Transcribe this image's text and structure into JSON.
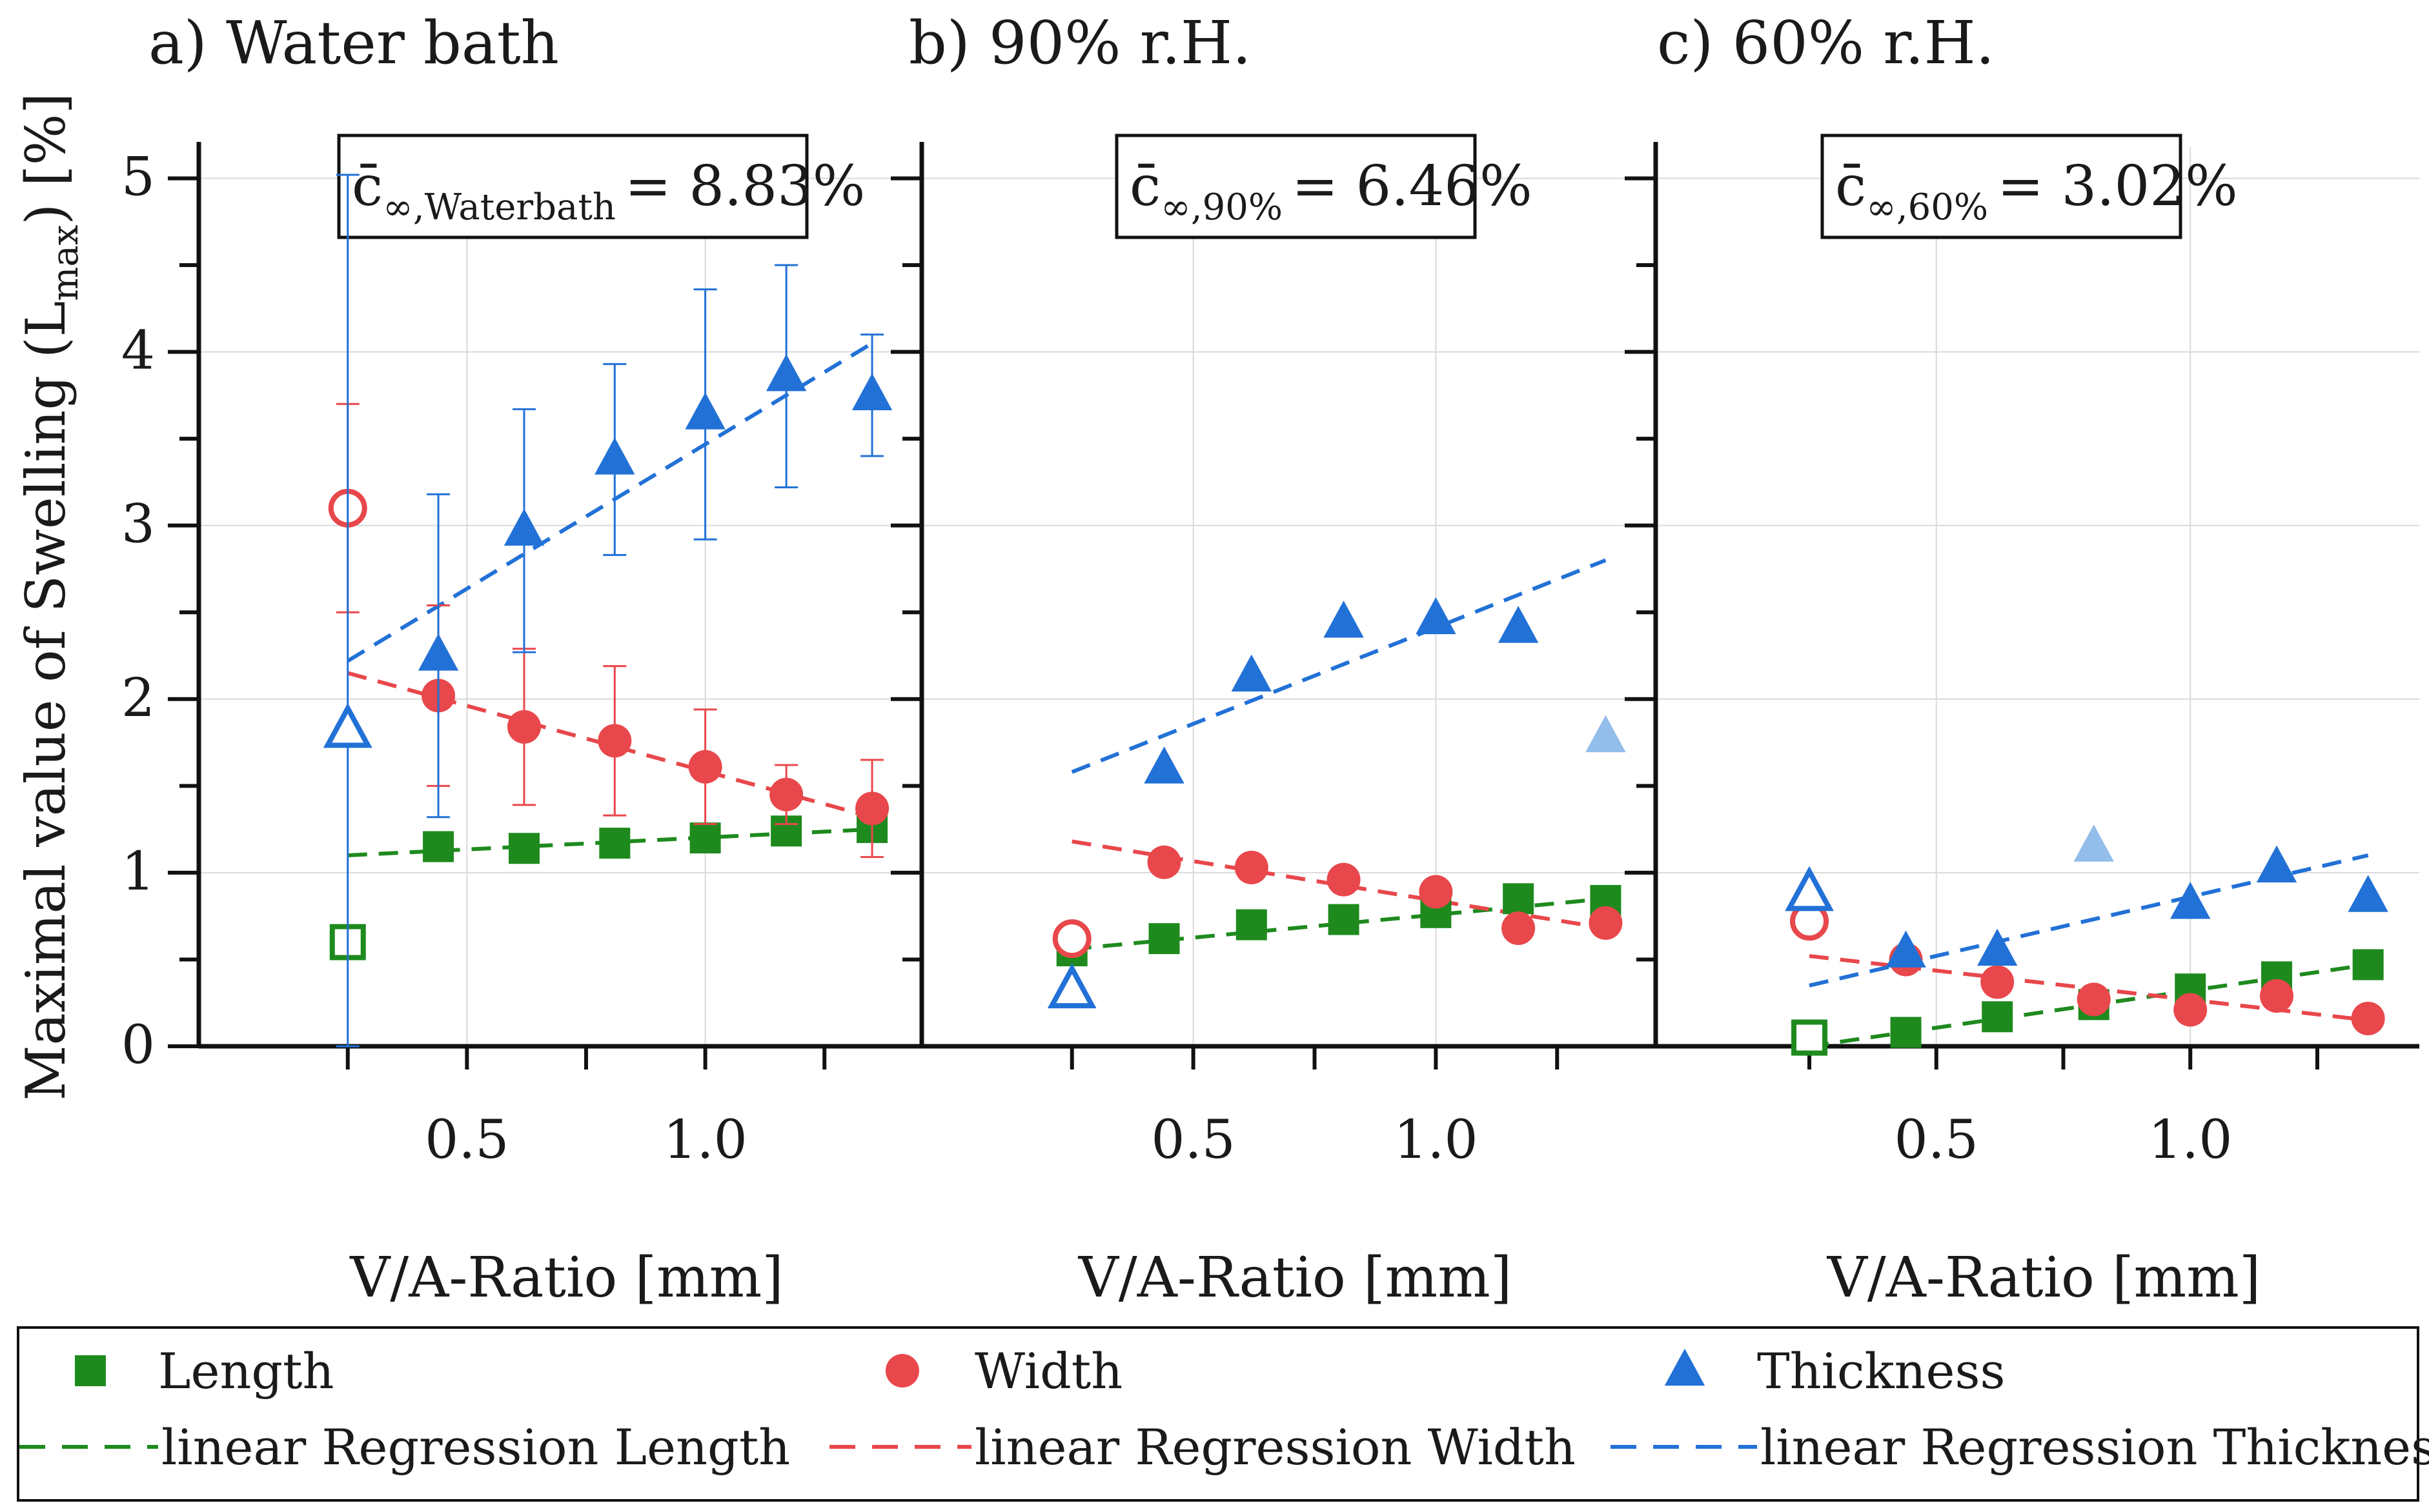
{
  "chart_data": [
    {
      "type": "scatter",
      "title": "a) Water bath",
      "annotation": {
        "symbol": "c̄",
        "subscript": "∞,Waterbath",
        "value": "= 8.83%"
      },
      "xlabel": "V/A-Ratio [mm]",
      "ylabel": "Maximal value of Swelling (L",
      "ylabel_sub": "max",
      "ylabel_end": ") [%]",
      "ylim": [
        0,
        5
      ],
      "yticks": [
        "0",
        "1",
        "2",
        "3",
        "4",
        "5"
      ],
      "xticks": [
        {
          "value": 0.5,
          "label": "0.5"
        },
        {
          "value": 1.0,
          "label": "1.0"
        }
      ],
      "xlim": [
        0.1,
        1.4
      ],
      "series": [
        {
          "name": "Length",
          "x": [
            0.25,
            0.44,
            0.62,
            0.81,
            1.0,
            1.17,
            1.35
          ],
          "y": [
            0.6,
            1.15,
            1.14,
            1.17,
            1.2,
            1.24,
            1.26
          ],
          "hollow": [
            true,
            false,
            false,
            false,
            false,
            false,
            false
          ],
          "err": [
            0,
            0,
            0,
            0,
            0,
            0,
            0
          ]
        },
        {
          "name": "Width",
          "x": [
            0.25,
            0.44,
            0.62,
            0.81,
            1.0,
            1.17,
            1.35
          ],
          "y": [
            3.1,
            2.02,
            1.84,
            1.76,
            1.61,
            1.45,
            1.37
          ],
          "hollow": [
            true,
            false,
            false,
            false,
            false,
            false,
            false
          ],
          "err": [
            0.6,
            0.52,
            0.45,
            0.43,
            0.33,
            0.17,
            0.28
          ]
        },
        {
          "name": "Thickness",
          "x": [
            0.25,
            0.44,
            0.62,
            0.81,
            1.0,
            1.17,
            1.35
          ],
          "y": [
            1.82,
            2.25,
            2.97,
            3.38,
            3.64,
            3.86,
            3.75
          ],
          "hollow": [
            true,
            false,
            false,
            false,
            false,
            false,
            false
          ],
          "err": [
            3.2,
            0.93,
            0.7,
            0.55,
            0.72,
            0.64,
            0.35
          ]
        }
      ],
      "regression": [
        {
          "name": "linear Regression Length",
          "x": [
            0.25,
            1.35
          ],
          "y": [
            1.1,
            1.25
          ]
        },
        {
          "name": "linear Regression Width",
          "x": [
            0.25,
            1.35
          ],
          "y": [
            2.15,
            1.32
          ]
        },
        {
          "name": "linear Regression Thickness",
          "x": [
            0.25,
            1.35
          ],
          "y": [
            2.22,
            4.05
          ]
        }
      ]
    },
    {
      "type": "scatter",
      "title": "b) 90% r.H.",
      "annotation": {
        "symbol": "c̄",
        "subscript": "∞,90%",
        "value": "= 6.46%"
      },
      "xlabel": "V/A-Ratio [mm]",
      "ylim": [
        0,
        5
      ],
      "xticks": [
        {
          "value": 0.5,
          "label": "0.5"
        },
        {
          "value": 1.0,
          "label": "1.0"
        }
      ],
      "xlim": [
        0.1,
        1.4
      ],
      "series": [
        {
          "name": "Length",
          "x": [
            0.25,
            0.44,
            0.62,
            0.81,
            1.0,
            1.17,
            1.35
          ],
          "y": [
            0.55,
            0.62,
            0.7,
            0.73,
            0.77,
            0.85,
            0.84
          ],
          "hollow": [
            false,
            false,
            false,
            false,
            false,
            false,
            false
          ]
        },
        {
          "name": "Width",
          "x": [
            0.25,
            0.44,
            0.62,
            0.81,
            1.0,
            1.17,
            1.35
          ],
          "y": [
            0.62,
            1.06,
            1.03,
            0.96,
            0.89,
            0.68,
            0.71
          ],
          "hollow": [
            true,
            false,
            false,
            false,
            false,
            false,
            false
          ]
        },
        {
          "name": "Thickness",
          "x": [
            0.25,
            0.44,
            0.62,
            0.81,
            1.0,
            1.17,
            1.35
          ],
          "y": [
            0.32,
            1.6,
            2.13,
            2.44,
            2.46,
            2.41,
            1.78
          ],
          "hollow": [
            true,
            false,
            false,
            false,
            false,
            false,
            false
          ],
          "faded": [
            false,
            false,
            false,
            false,
            false,
            false,
            true
          ]
        }
      ],
      "regression": [
        {
          "name": "linear Regression Length",
          "x": [
            0.25,
            1.35
          ],
          "y": [
            0.56,
            0.85
          ]
        },
        {
          "name": "linear Regression Width",
          "x": [
            0.25,
            1.35
          ],
          "y": [
            1.18,
            0.68
          ]
        },
        {
          "name": "linear Regression Thickness",
          "x": [
            0.25,
            1.35
          ],
          "y": [
            1.58,
            2.8
          ]
        }
      ]
    },
    {
      "type": "scatter",
      "title": "c) 60% r.H.",
      "annotation": {
        "symbol": "c̄",
        "subscript": "∞,60%",
        "value": "= 3.02%"
      },
      "xlabel": "V/A-Ratio [mm]",
      "ylim": [
        0,
        5
      ],
      "xticks": [
        {
          "value": 0.5,
          "label": "0.5"
        },
        {
          "value": 1.0,
          "label": "1.0"
        }
      ],
      "xlim": [
        0.1,
        1.4
      ],
      "series": [
        {
          "name": "Length",
          "x": [
            0.25,
            0.44,
            0.62,
            0.81,
            1.0,
            1.17,
            1.35
          ],
          "y": [
            0.05,
            0.08,
            0.17,
            0.24,
            0.33,
            0.4,
            0.47
          ],
          "hollow": [
            true,
            false,
            false,
            false,
            false,
            false,
            false
          ]
        },
        {
          "name": "Width",
          "x": [
            0.25,
            0.44,
            0.62,
            0.81,
            1.0,
            1.17,
            1.35
          ],
          "y": [
            0.72,
            0.5,
            0.37,
            0.27,
            0.21,
            0.29,
            0.16
          ],
          "hollow": [
            true,
            false,
            false,
            false,
            false,
            false,
            false
          ]
        },
        {
          "name": "Thickness",
          "x": [
            0.25,
            0.44,
            0.62,
            0.81,
            1.0,
            1.17,
            1.35
          ],
          "y": [
            0.88,
            0.54,
            0.55,
            1.15,
            0.82,
            1.03,
            0.86
          ],
          "hollow": [
            true,
            false,
            false,
            false,
            false,
            false,
            false
          ],
          "faded": [
            false,
            false,
            false,
            true,
            false,
            false,
            false
          ]
        }
      ],
      "regression": [
        {
          "name": "linear Regression Length",
          "x": [
            0.25,
            1.35
          ],
          "y": [
            0.0,
            0.47
          ]
        },
        {
          "name": "linear Regression Width",
          "x": [
            0.25,
            1.35
          ],
          "y": [
            0.52,
            0.15
          ]
        },
        {
          "name": "linear Regression Thickness",
          "x": [
            0.25,
            1.35
          ],
          "y": [
            0.35,
            1.1
          ]
        }
      ]
    }
  ],
  "legend": {
    "items": [
      {
        "label": "Length",
        "marker": "square"
      },
      {
        "label": "Width",
        "marker": "circle"
      },
      {
        "label": "Thickness",
        "marker": "triangle"
      }
    ],
    "lines": [
      {
        "label": "linear  Regression Length"
      },
      {
        "label": "linear Regression Width"
      },
      {
        "label": "linear Regression Thickness"
      }
    ]
  },
  "colors": {
    "Length": "#1e8a1e",
    "Width": "#e8474b",
    "Thickness": "#2271d6",
    "ThicknessFaded": "#93bdea"
  }
}
